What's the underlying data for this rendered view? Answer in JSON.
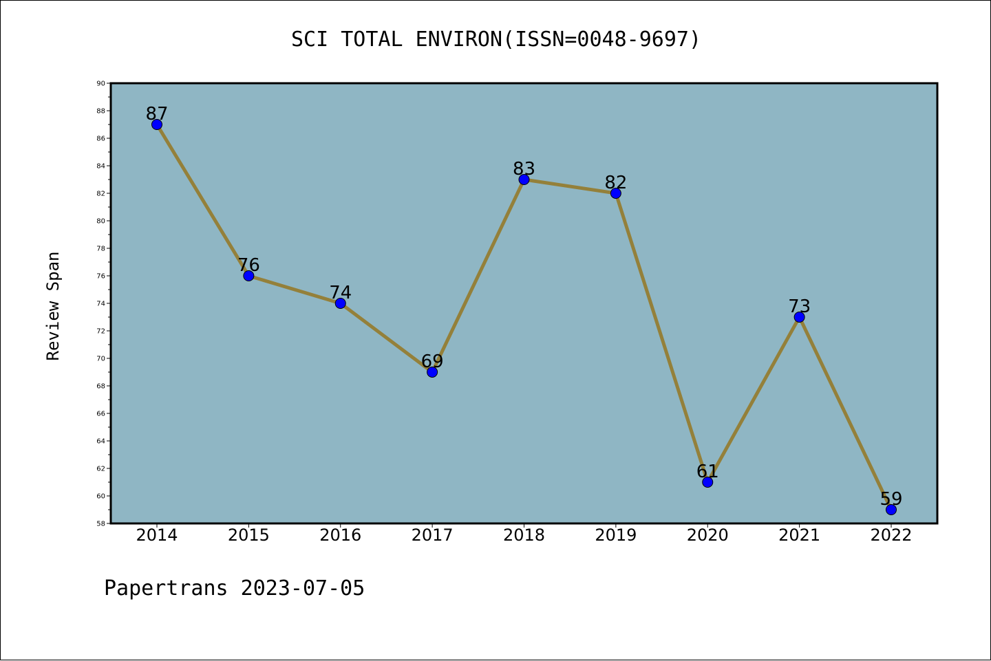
{
  "chart_data": {
    "type": "line",
    "title": "SCI TOTAL ENVIRON(ISSN=0048-9697)",
    "xlabel": "",
    "ylabel": "Review Span",
    "categories": [
      "2014",
      "2015",
      "2016",
      "2017",
      "2018",
      "2019",
      "2020",
      "2021",
      "2022"
    ],
    "series": [
      {
        "values": [
          87,
          76,
          74,
          69,
          83,
          82,
          61,
          73,
          59
        ]
      }
    ],
    "data_labels": [
      "87",
      "76",
      "74",
      "69",
      "83",
      "82",
      "61",
      "73",
      "59"
    ],
    "ylim": [
      58,
      90
    ],
    "yticks": [
      "58",
      "60",
      "62",
      "64",
      "66",
      "68",
      "70",
      "72",
      "74",
      "76",
      "78",
      "80",
      "82",
      "84",
      "86",
      "88",
      "90"
    ],
    "grid": false,
    "legend": "none",
    "colors": {
      "plot_background": "#8fb6c4",
      "line": "#94803a",
      "marker": "#0000ff",
      "marker_edge": "#000000"
    }
  },
  "footer": {
    "text": "Papertrans 2023-07-05"
  }
}
